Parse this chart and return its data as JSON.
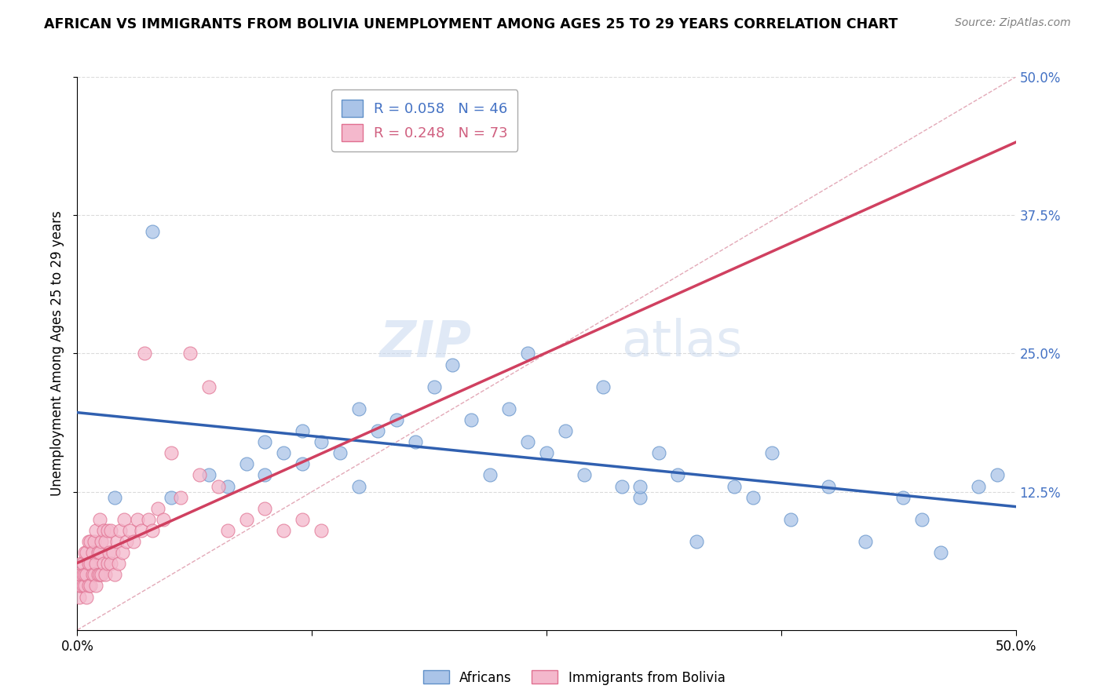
{
  "title": "AFRICAN VS IMMIGRANTS FROM BOLIVIA UNEMPLOYMENT AMONG AGES 25 TO 29 YEARS CORRELATION CHART",
  "source": "Source: ZipAtlas.com",
  "ylabel": "Unemployment Among Ages 25 to 29 years",
  "legend_african_R": "R = 0.058",
  "legend_african_N": "N = 46",
  "legend_bolivia_R": "R = 0.248",
  "legend_bolivia_N": "N = 73",
  "legend_african_label": "Africans",
  "legend_bolivia_label": "Immigrants from Bolivia",
  "african_color": "#aac4e8",
  "bolivia_color": "#f4b8cc",
  "african_edge_color": "#6090c8",
  "bolivia_edge_color": "#e07090",
  "trendline_african_color": "#3060b0",
  "trendline_bolivia_color": "#d04060",
  "diag_line_color": "#e0a0b0",
  "watermark_zip": "ZIP",
  "watermark_atlas": "atlas",
  "ytick_values": [
    0.125,
    0.25,
    0.375,
    0.5
  ],
  "ytick_labels": [
    "12.5%",
    "25.0%",
    "37.5%",
    "50.0%"
  ],
  "africans_x": [
    0.02,
    0.04,
    0.05,
    0.07,
    0.08,
    0.09,
    0.1,
    0.1,
    0.11,
    0.12,
    0.12,
    0.13,
    0.14,
    0.15,
    0.15,
    0.16,
    0.17,
    0.18,
    0.19,
    0.2,
    0.21,
    0.22,
    0.23,
    0.24,
    0.24,
    0.25,
    0.26,
    0.27,
    0.28,
    0.29,
    0.3,
    0.3,
    0.31,
    0.32,
    0.33,
    0.35,
    0.36,
    0.37,
    0.38,
    0.4,
    0.42,
    0.44,
    0.45,
    0.46,
    0.48,
    0.49
  ],
  "africans_y": [
    0.12,
    0.36,
    0.12,
    0.14,
    0.13,
    0.15,
    0.14,
    0.17,
    0.16,
    0.15,
    0.18,
    0.17,
    0.16,
    0.2,
    0.13,
    0.18,
    0.19,
    0.17,
    0.22,
    0.24,
    0.19,
    0.14,
    0.2,
    0.17,
    0.25,
    0.16,
    0.18,
    0.14,
    0.22,
    0.13,
    0.12,
    0.13,
    0.16,
    0.14,
    0.08,
    0.13,
    0.12,
    0.16,
    0.1,
    0.13,
    0.08,
    0.12,
    0.1,
    0.07,
    0.13,
    0.14
  ],
  "bolivia_x": [
    0.001,
    0.001,
    0.001,
    0.002,
    0.002,
    0.002,
    0.003,
    0.003,
    0.003,
    0.004,
    0.004,
    0.004,
    0.005,
    0.005,
    0.005,
    0.006,
    0.006,
    0.006,
    0.007,
    0.007,
    0.007,
    0.008,
    0.008,
    0.009,
    0.009,
    0.01,
    0.01,
    0.01,
    0.011,
    0.011,
    0.012,
    0.012,
    0.012,
    0.013,
    0.013,
    0.014,
    0.014,
    0.015,
    0.015,
    0.016,
    0.016,
    0.017,
    0.018,
    0.018,
    0.019,
    0.02,
    0.021,
    0.022,
    0.023,
    0.024,
    0.025,
    0.026,
    0.028,
    0.03,
    0.032,
    0.034,
    0.036,
    0.038,
    0.04,
    0.043,
    0.046,
    0.05,
    0.055,
    0.06,
    0.065,
    0.07,
    0.075,
    0.08,
    0.09,
    0.1,
    0.11,
    0.12,
    0.13
  ],
  "bolivia_y": [
    0.03,
    0.04,
    0.05,
    0.04,
    0.05,
    0.06,
    0.04,
    0.05,
    0.06,
    0.04,
    0.05,
    0.07,
    0.03,
    0.05,
    0.07,
    0.04,
    0.06,
    0.08,
    0.04,
    0.06,
    0.08,
    0.05,
    0.07,
    0.05,
    0.08,
    0.04,
    0.06,
    0.09,
    0.05,
    0.07,
    0.05,
    0.07,
    0.1,
    0.05,
    0.08,
    0.06,
    0.09,
    0.05,
    0.08,
    0.06,
    0.09,
    0.07,
    0.06,
    0.09,
    0.07,
    0.05,
    0.08,
    0.06,
    0.09,
    0.07,
    0.1,
    0.08,
    0.09,
    0.08,
    0.1,
    0.09,
    0.25,
    0.1,
    0.09,
    0.11,
    0.1,
    0.16,
    0.12,
    0.25,
    0.14,
    0.22,
    0.13,
    0.09,
    0.1,
    0.11,
    0.09,
    0.1,
    0.09
  ]
}
